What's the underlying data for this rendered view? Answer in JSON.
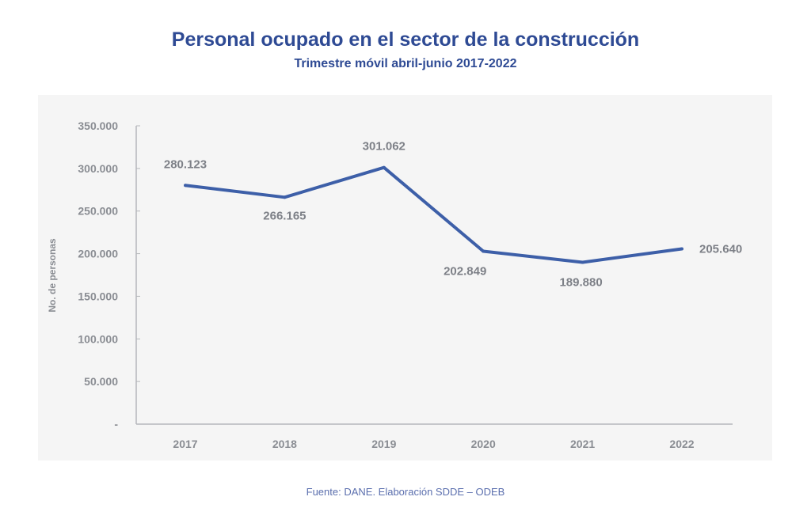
{
  "chart_data": {
    "type": "line",
    "title": "Personal ocupado en el sector de la construcción",
    "subtitle": "Trimestre móvil abril-junio 2017-2022",
    "xlabel": "",
    "ylabel": "No. de personas",
    "categories": [
      "2017",
      "2018",
      "2019",
      "2020",
      "2021",
      "2022"
    ],
    "values": [
      280123,
      266165,
      301062,
      202849,
      189880,
      205640
    ],
    "data_labels": [
      "280.123",
      "266.165",
      "301.062",
      "202.849",
      "189.880",
      "205.640"
    ],
    "ylim": [
      0,
      350000
    ],
    "yticks": [
      0,
      50000,
      100000,
      150000,
      200000,
      250000,
      300000,
      350000
    ],
    "ytick_labels": [
      "-",
      "50.000",
      "100.000",
      "150.000",
      "200.000",
      "250.000",
      "300.000",
      "350.000"
    ],
    "grid": false,
    "line_color": "#3d5fa8",
    "source": "Fuente: DANE. Elaboración SDDE – ODEB"
  }
}
